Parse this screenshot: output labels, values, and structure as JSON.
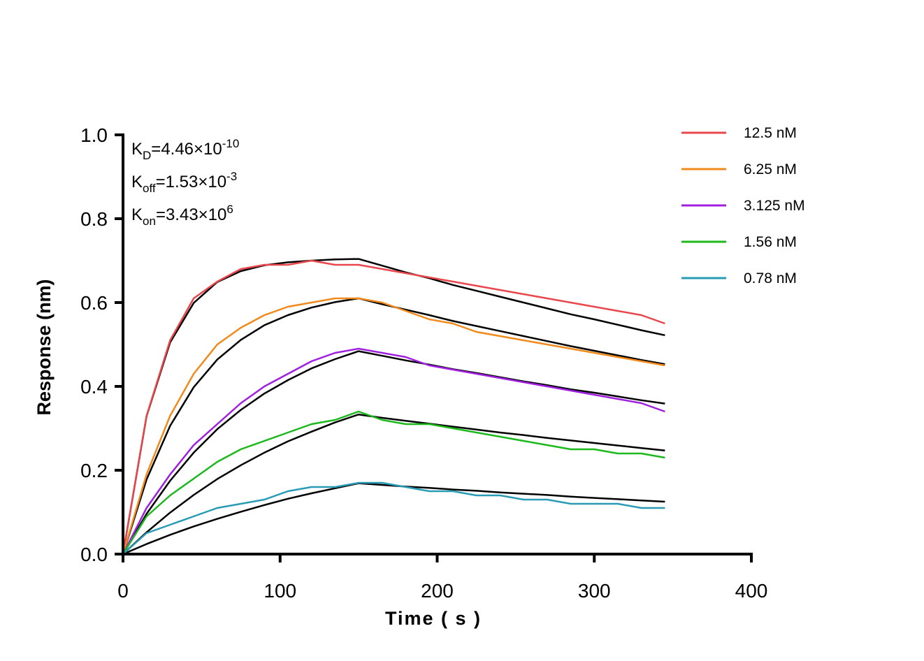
{
  "chart_data": {
    "type": "line",
    "title": "",
    "xlabel": "Time ( s )",
    "ylabel": "Response (nm)",
    "xlim": [
      0,
      400
    ],
    "ylim": [
      0,
      1.0
    ],
    "xticks": [
      "0",
      "100",
      "200",
      "300",
      "400"
    ],
    "yticks": [
      "0.0",
      "0.2",
      "0.4",
      "0.6",
      "0.8",
      "1.0"
    ],
    "grid": false,
    "legend_placement": "top-right",
    "annotations": [
      {
        "sym": "K",
        "sub": "D",
        "mant": "=4.46×10",
        "exp": "-10"
      },
      {
        "sym": "K",
        "sub": "off",
        "mant": "=1.53×10",
        "exp": "-3"
      },
      {
        "sym": "K",
        "sub": "on",
        "mant": "=3.43×10",
        "exp": "6"
      }
    ],
    "x": [
      0,
      15,
      30,
      45,
      60,
      75,
      90,
      105,
      120,
      135,
      150,
      165,
      180,
      195,
      210,
      225,
      240,
      255,
      270,
      285,
      300,
      315,
      330,
      345
    ],
    "series": [
      {
        "name": "12.5 nM",
        "color": "#e8474c",
        "values": [
          0,
          0.33,
          0.51,
          0.61,
          0.65,
          0.68,
          0.69,
          0.69,
          0.7,
          0.69,
          0.69,
          0.68,
          0.67,
          0.66,
          0.65,
          0.64,
          0.63,
          0.62,
          0.61,
          0.6,
          0.59,
          0.58,
          0.57,
          0.55
        ],
        "fit": [
          0,
          0.329,
          0.505,
          0.599,
          0.649,
          0.675,
          0.689,
          0.696,
          0.7,
          0.703,
          0.704,
          0.688,
          0.672,
          0.658,
          0.642,
          0.628,
          0.614,
          0.6,
          0.586,
          0.572,
          0.56,
          0.547,
          0.534,
          0.522
        ]
      },
      {
        "name": "6.25 nM",
        "color": "#f08a1c",
        "values": [
          0,
          0.19,
          0.33,
          0.43,
          0.5,
          0.54,
          0.57,
          0.59,
          0.6,
          0.61,
          0.61,
          0.6,
          0.58,
          0.56,
          0.55,
          0.53,
          0.52,
          0.51,
          0.5,
          0.49,
          0.48,
          0.47,
          0.46,
          0.45
        ],
        "fit": [
          0,
          0.178,
          0.306,
          0.398,
          0.464,
          0.511,
          0.546,
          0.57,
          0.588,
          0.601,
          0.61,
          0.596,
          0.583,
          0.57,
          0.556,
          0.544,
          0.532,
          0.52,
          0.508,
          0.496,
          0.485,
          0.474,
          0.463,
          0.453
        ]
      },
      {
        "name": "3.125 nM",
        "color": "#a020e0",
        "values": [
          0,
          0.11,
          0.19,
          0.26,
          0.31,
          0.36,
          0.4,
          0.43,
          0.46,
          0.48,
          0.49,
          0.48,
          0.47,
          0.45,
          0.44,
          0.43,
          0.42,
          0.41,
          0.4,
          0.39,
          0.38,
          0.37,
          0.36,
          0.34
        ],
        "fit": [
          0,
          0.096,
          0.175,
          0.242,
          0.298,
          0.344,
          0.383,
          0.415,
          0.443,
          0.465,
          0.484,
          0.473,
          0.462,
          0.452,
          0.441,
          0.432,
          0.422,
          0.412,
          0.403,
          0.393,
          0.385,
          0.376,
          0.367,
          0.359
        ]
      },
      {
        "name": "1.56 nM",
        "color": "#1cb81c",
        "values": [
          0,
          0.09,
          0.14,
          0.18,
          0.22,
          0.25,
          0.27,
          0.29,
          0.31,
          0.32,
          0.34,
          0.32,
          0.31,
          0.31,
          0.3,
          0.29,
          0.28,
          0.27,
          0.26,
          0.25,
          0.25,
          0.24,
          0.24,
          0.23
        ],
        "fit": [
          0,
          0.052,
          0.099,
          0.141,
          0.179,
          0.212,
          0.242,
          0.269,
          0.292,
          0.314,
          0.333,
          0.325,
          0.318,
          0.311,
          0.304,
          0.297,
          0.29,
          0.284,
          0.277,
          0.271,
          0.265,
          0.259,
          0.253,
          0.247
        ]
      },
      {
        "name": "0.78 nM",
        "color": "#2a9bb5",
        "values": [
          0,
          0.05,
          0.07,
          0.09,
          0.11,
          0.12,
          0.13,
          0.15,
          0.16,
          0.16,
          0.17,
          0.17,
          0.16,
          0.15,
          0.15,
          0.14,
          0.14,
          0.13,
          0.13,
          0.12,
          0.12,
          0.12,
          0.11,
          0.11
        ],
        "fit": [
          0,
          0.024,
          0.046,
          0.066,
          0.084,
          0.101,
          0.117,
          0.132,
          0.145,
          0.157,
          0.169,
          0.165,
          0.161,
          0.158,
          0.154,
          0.151,
          0.147,
          0.144,
          0.141,
          0.137,
          0.134,
          0.131,
          0.128,
          0.125
        ]
      }
    ],
    "fit_color": "#000000"
  }
}
